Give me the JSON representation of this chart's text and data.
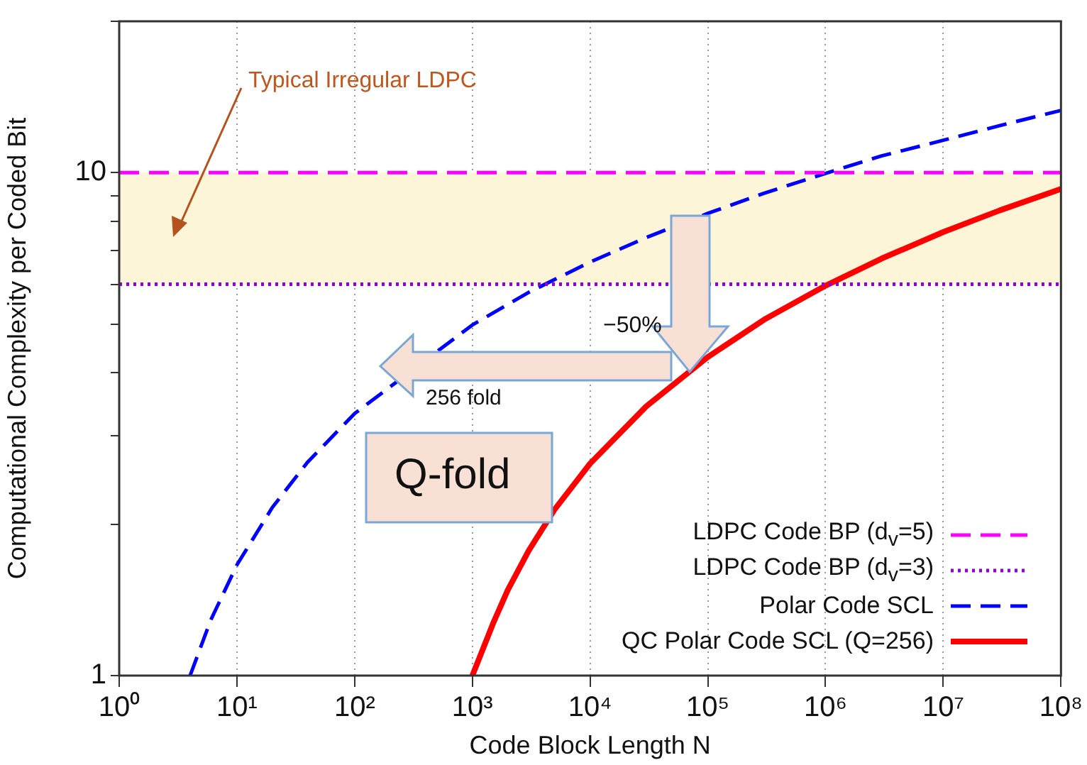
{
  "chart_data": {
    "type": "line",
    "xlabel": "Code Block Length N",
    "ylabel": "Computational Complexity per Coded Bit",
    "log": "xy",
    "grid": "x",
    "legend": "bottom right",
    "marker": "none",
    "xlim": [
      1,
      100000000
    ],
    "xticks": [
      {
        "value": 1,
        "label": "10⁰"
      },
      {
        "value": 10,
        "label": "10¹"
      },
      {
        "value": 100,
        "label": "10²"
      },
      {
        "value": 1000,
        "label": "10³"
      },
      {
        "value": 10000,
        "label": "10⁴"
      },
      {
        "value": 100000,
        "label": "10⁵"
      },
      {
        "value": 1000000,
        "label": "10⁶"
      },
      {
        "value": 10000000,
        "label": "10⁷"
      },
      {
        "value": 100000000,
        "label": "10⁸"
      }
    ],
    "ylim": [
      1,
      20
    ],
    "yticks": [
      1,
      {
        "value": 2,
        "label": null
      },
      {
        "value": 3,
        "label": null
      },
      {
        "value": 4,
        "label": null
      },
      {
        "value": 5,
        "label": null
      },
      {
        "value": 6,
        "label": null
      },
      {
        "value": 7,
        "label": null
      },
      {
        "value": 8,
        "label": null
      },
      {
        "value": 9,
        "label": null
      },
      10,
      {
        "value": 20,
        "label": null
      }
    ],
    "series": [
      {
        "name": "LDPC Code BP (d$_{v}$=5)",
        "color": "#ff00ff",
        "line_style": "dashed",
        "x": [
          1,
          100000000
        ],
        "values": [
          10,
          10
        ]
      },
      {
        "name": "LDPC Code BP (d$_{v}$=3)",
        "color": "#9400d3",
        "line_style": "dotted",
        "x": [
          1,
          100000000
        ],
        "values": [
          6,
          6
        ]
      },
      {
        "name": "Polar Code SCL",
        "color": "#0000ff",
        "line_style": "dashed",
        "x": [
          4,
          6,
          10,
          20,
          40,
          100,
          1000,
          3000,
          10000,
          30000,
          100000,
          300000,
          1000000,
          3000000,
          10000000,
          30000000,
          100000000
        ],
        "values": [
          1,
          1.29,
          1.66,
          2.16,
          2.66,
          3.32,
          4.98,
          5.78,
          6.64,
          7.43,
          8.3,
          9.1,
          9.97,
          10.8,
          11.6,
          12.4,
          13.3
        ]
      },
      {
        "name": "QC Polar Code SCL (Q=256)",
        "color": "#ff0000",
        "line_style": "solid",
        "x": [
          1000,
          1500,
          2000,
          3000,
          5000,
          10000,
          30000,
          100000,
          300000,
          1000000,
          3000000,
          10000000,
          30000000,
          100000000
        ],
        "values": [
          1,
          1.27,
          1.48,
          1.77,
          2.14,
          2.64,
          3.43,
          4.3,
          5.1,
          5.96,
          6.75,
          7.62,
          8.41,
          9.28
        ]
      }
    ],
    "bands": [
      {
        "axis": "y",
        "from": 6,
        "to": 10,
        "label": "Typical Irregular LDPC",
        "color": "#fdf5d8"
      }
    ],
    "annotations": [
      "−50%",
      "256 fold",
      "Q-fold"
    ]
  }
}
